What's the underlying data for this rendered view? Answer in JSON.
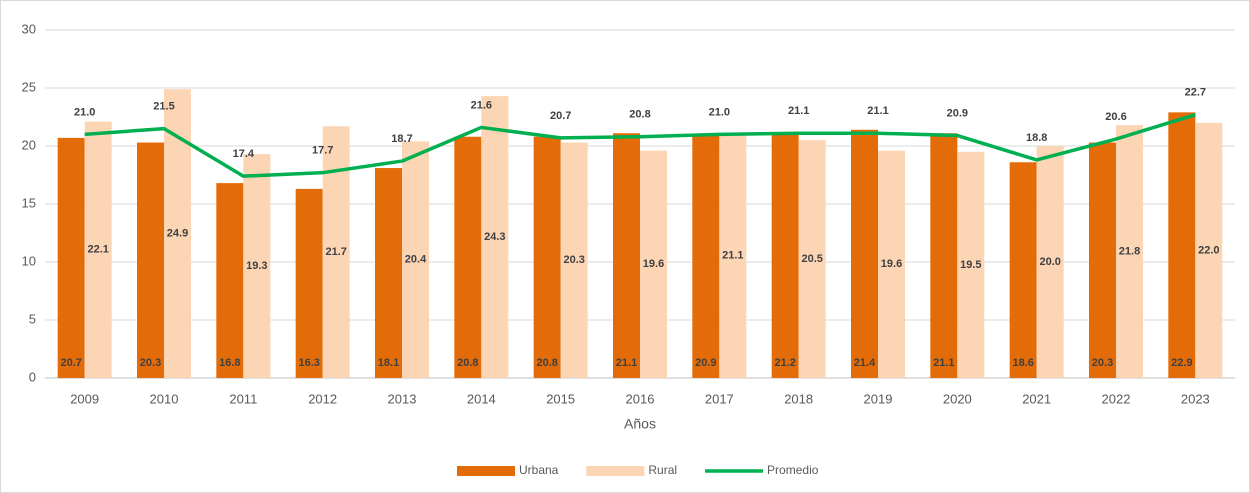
{
  "chart_data": {
    "type": "bar",
    "x_label": "Años",
    "categories": [
      "2009",
      "2010",
      "2011",
      "2012",
      "2013",
      "2014",
      "2015",
      "2016",
      "2017",
      "2018",
      "2019",
      "2020",
      "2021",
      "2022",
      "2023"
    ],
    "series": [
      {
        "name": "Urbana",
        "type": "bar",
        "color": "#e36c09",
        "values": [
          20.7,
          20.3,
          16.8,
          16.3,
          18.1,
          20.8,
          20.8,
          21.1,
          20.9,
          21.2,
          21.4,
          21.1,
          18.6,
          20.3,
          22.9
        ],
        "value_labels": [
          "20.7",
          "20.3",
          "16.8",
          "16.3",
          "18.1",
          "20.8",
          "20.8",
          "21.1",
          "20.9",
          "21.2",
          "21.4",
          "21.1",
          "18.6",
          "20.3",
          "22.9"
        ]
      },
      {
        "name": "Rural",
        "type": "bar",
        "color": "#fcd5b5",
        "values": [
          22.1,
          24.9,
          19.3,
          21.7,
          20.4,
          24.3,
          20.3,
          19.6,
          21.1,
          20.5,
          19.6,
          19.5,
          20,
          21.8,
          22
        ],
        "value_labels": [
          "22.1",
          "24.9",
          "19.3",
          "21.7",
          "20.4",
          "24.3",
          "20.3",
          "19.6",
          "21.1",
          "20.5",
          "19.6",
          "19.5",
          "20.0",
          "21.8",
          "22.0"
        ]
      },
      {
        "name": "Promedio",
        "type": "line",
        "color": "#00b050",
        "values": [
          21,
          21.5,
          17.4,
          17.7,
          18.7,
          21.6,
          20.7,
          20.8,
          21,
          21.1,
          21.1,
          20.9,
          18.8,
          20.6,
          22.7
        ],
        "value_labels": [
          "21.0",
          "21.5",
          "17.4",
          "17.7",
          "18.7",
          "21.6",
          "20.7",
          "20.8",
          "21.0",
          "21.1",
          "21.1",
          "20.9",
          "18.8",
          "20.6",
          "22.7"
        ]
      }
    ],
    "ylim": [
      0,
      30
    ],
    "yticks": [
      0,
      5,
      10,
      15,
      20,
      25,
      30
    ],
    "grid": true,
    "legend": "bottom"
  }
}
